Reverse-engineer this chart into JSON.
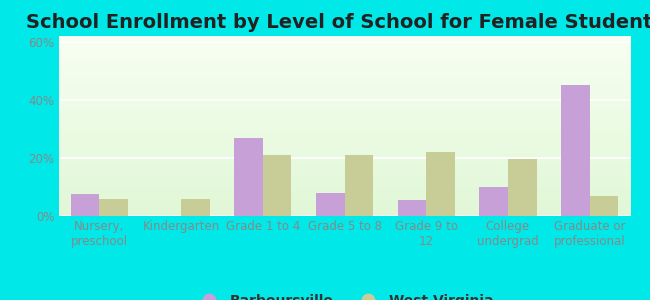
{
  "title": "School Enrollment by Level of School for Female Students",
  "categories": [
    "Nursery,\npreschool",
    "Kindergarten",
    "Grade 1 to 4",
    "Grade 5 to 8",
    "Grade 9 to\n12",
    "College\nundergrad",
    "Graduate or\nprofessional"
  ],
  "barboursville": [
    7.5,
    0,
    27,
    8,
    5.5,
    10,
    45
  ],
  "west_virginia": [
    6,
    6,
    21,
    21,
    22,
    19.5,
    7
  ],
  "bar_color_barb": "#c8a0d8",
  "bar_color_wv": "#c8cc96",
  "background_color_fig": "#00e8e8",
  "ylim": [
    0,
    62
  ],
  "yticks": [
    0,
    20,
    40,
    60
  ],
  "ytick_labels": [
    "0%",
    "20%",
    "40%",
    "60%"
  ],
  "title_fontsize": 14,
  "tick_fontsize": 8.5,
  "legend_fontsize": 10,
  "bar_width": 0.35,
  "grid_color": "#ffffff",
  "tick_color": "#888888",
  "title_color": "#222222"
}
